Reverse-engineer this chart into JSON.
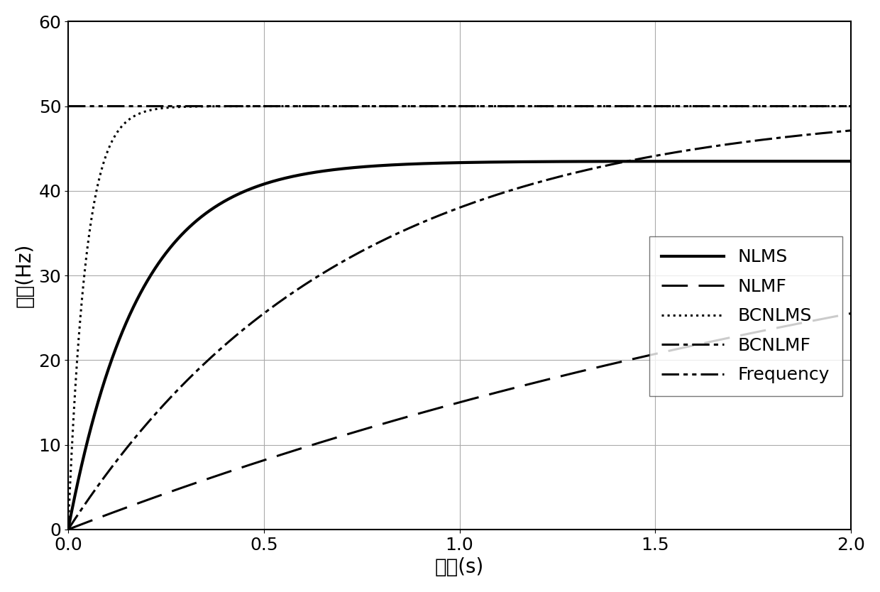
{
  "xlabel": "时间(s)",
  "ylabel": "频率(Hz)",
  "xlim": [
    0,
    2
  ],
  "ylim": [
    0,
    60
  ],
  "xticks": [
    0,
    0.5,
    1.0,
    1.5,
    2.0
  ],
  "yticks": [
    0,
    10,
    20,
    30,
    40,
    50,
    60
  ],
  "background_color": "#ffffff",
  "line_color": "#000000",
  "legend_entries": [
    "NLMS",
    "NLMF",
    "BCNLMS",
    "BCNLMF",
    "Frequency"
  ],
  "xlabel_fontsize": 20,
  "ylabel_fontsize": 20,
  "tick_fontsize": 18,
  "legend_fontsize": 18,
  "linewidth_solid": 3.0,
  "linewidth_other": 2.2,
  "curves": {
    "NLMS": {
      "tau": 0.18,
      "asymptote": 43.5
    },
    "NLMF": {
      "tau": 2.8,
      "asymptote": 50.0
    },
    "BCNLMS": {
      "tau": 0.045,
      "asymptote": 50.0
    },
    "BCNLMF": {
      "tau": 0.7,
      "asymptote": 50.0
    },
    "Frequency": {
      "value": 50.0
    }
  }
}
